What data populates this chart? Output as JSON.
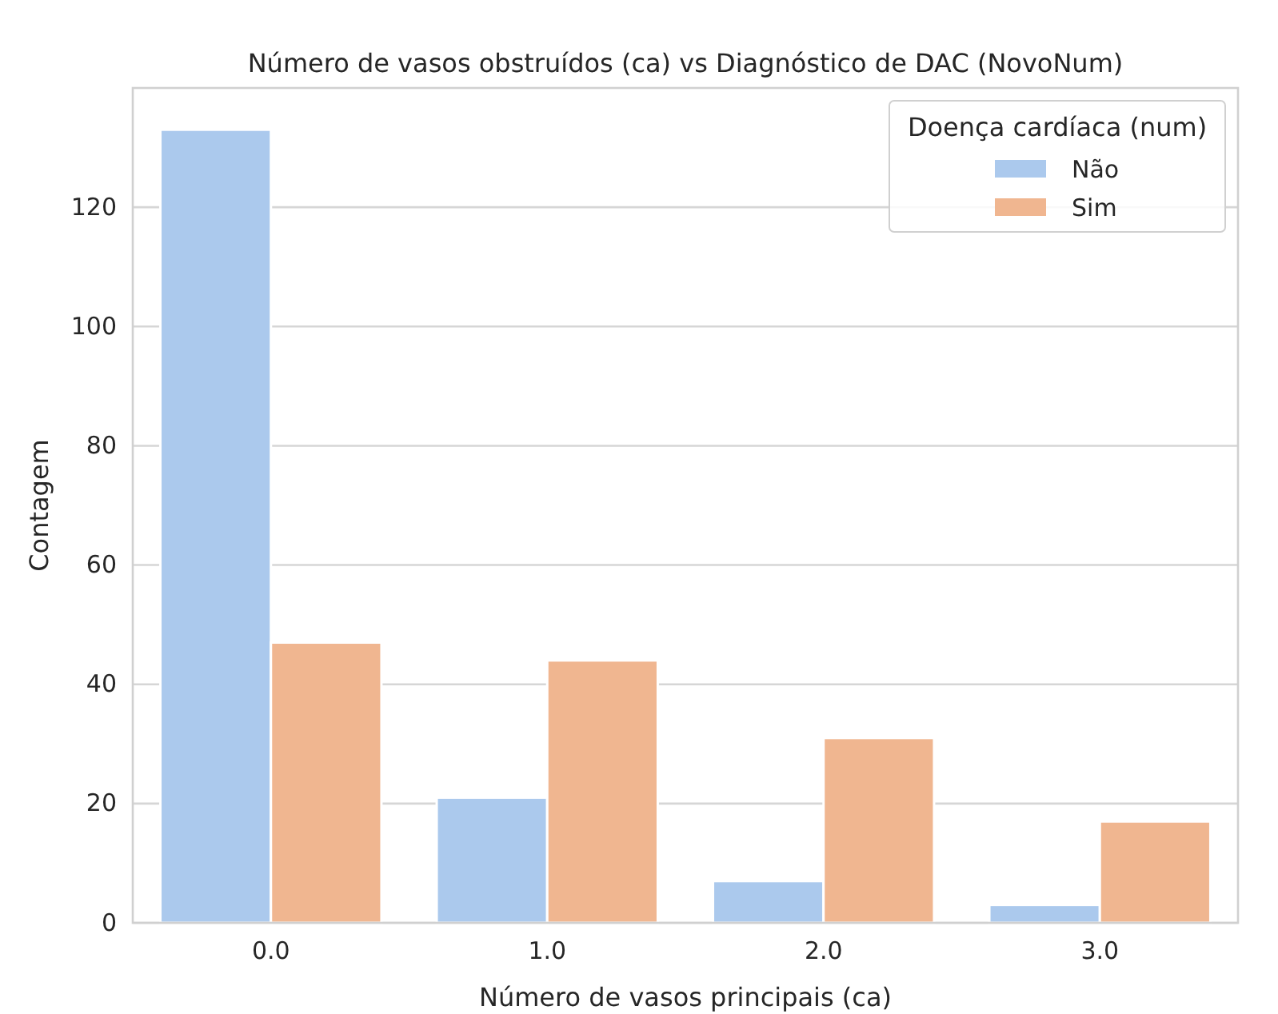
{
  "chart_data": {
    "type": "bar",
    "title": "Número de vasos obstruídos (ca) vs Diagnóstico de DAC (NovoNum)",
    "xlabel": "Número de vasos principais (ca)",
    "ylabel": "Contagem",
    "legend_title": "Doença cardíaca (num)",
    "categories": [
      "0.0",
      "1.0",
      "2.0",
      "3.0"
    ],
    "series": [
      {
        "name": "Não",
        "color": "#abc9ed",
        "values": [
          133,
          21,
          7,
          3
        ]
      },
      {
        "name": "Sim",
        "color": "#f0b690",
        "values": [
          47,
          44,
          31,
          17
        ]
      }
    ],
    "ylim": [
      0,
      140
    ],
    "yticks": [
      0,
      20,
      40,
      60,
      80,
      100,
      120
    ],
    "grid": "y",
    "legend": "top right"
  }
}
